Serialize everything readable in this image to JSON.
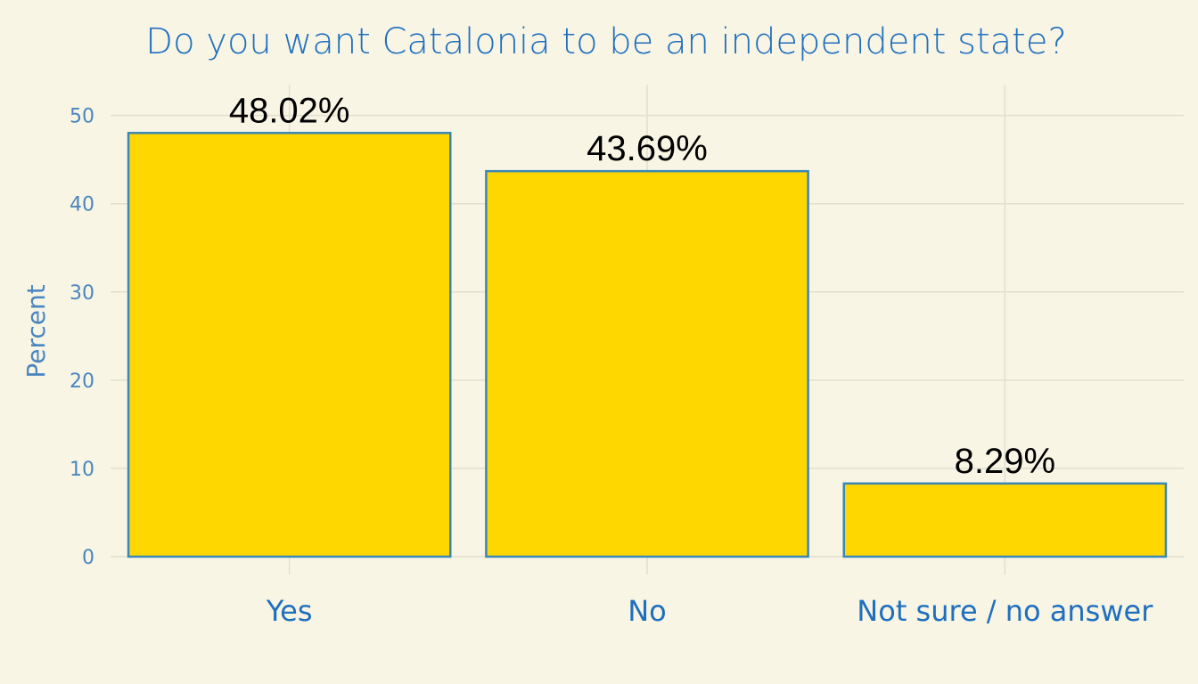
{
  "chart_data": {
    "type": "bar",
    "title": "Do you want Catalonia to be an independent state?",
    "xlabel": "",
    "ylabel": "Percent",
    "categories": [
      "Yes",
      "No",
      "Not sure / no answer"
    ],
    "values": [
      48.02,
      43.69,
      8.29
    ],
    "data_labels": [
      "48.02%",
      "43.69%",
      "8.29%"
    ],
    "y_ticks": [
      0,
      10,
      20,
      30,
      40,
      50
    ],
    "ylim": [
      0,
      53.5
    ],
    "grid": true,
    "legend": "none",
    "colors": {
      "bar_fill": "#ffd700",
      "bar_stroke": "#3a87b6",
      "background": "#f8f5e4",
      "title": "#1f6fbf",
      "axis_text": "#4a86c0",
      "grid": "#e2dfd0"
    }
  }
}
